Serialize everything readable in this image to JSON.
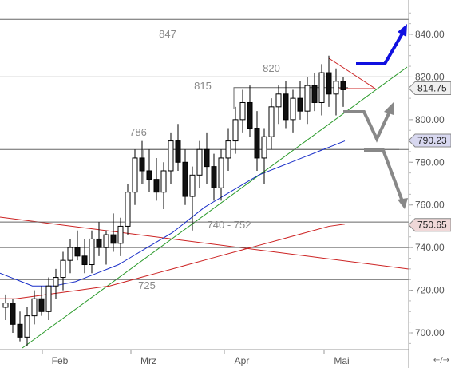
{
  "chart_data": {
    "type": "candlestick",
    "y_ticks": [
      700,
      720,
      740,
      760,
      780,
      800,
      820,
      840
    ],
    "ylim": [
      692,
      852
    ],
    "x_tick_labels": [
      "Feb",
      "Mrz",
      "Apr",
      "Mai"
    ],
    "horizontal_levels": [
      847,
      820,
      786,
      752,
      740,
      725
    ],
    "level_labels": [
      "847",
      "820",
      "815",
      "786",
      "740 - 752",
      "725"
    ],
    "price_tags": [
      {
        "value": 814.75,
        "label": "814.75",
        "color": "#f0f0f0"
      },
      {
        "value": 790.23,
        "label": "790.23",
        "color": "#d8d8f0"
      },
      {
        "value": 750.65,
        "label": "750.65",
        "color": "#f0d8d8"
      }
    ],
    "series": [
      {
        "name": "",
        "kind": "candles",
        "ohlc": [
          [
            712,
            718,
            706,
            714
          ],
          [
            714,
            716,
            700,
            704
          ],
          [
            704,
            710,
            696,
            698
          ],
          [
            698,
            712,
            694,
            708
          ],
          [
            708,
            720,
            704,
            716
          ],
          [
            716,
            722,
            708,
            710
          ],
          [
            710,
            726,
            706,
            722
          ],
          [
            722,
            730,
            716,
            726
          ],
          [
            726,
            738,
            720,
            734
          ],
          [
            734,
            744,
            728,
            740
          ],
          [
            740,
            748,
            734,
            736
          ],
          [
            736,
            744,
            728,
            732
          ],
          [
            732,
            748,
            728,
            744
          ],
          [
            744,
            752,
            736,
            740
          ],
          [
            740,
            748,
            732,
            746
          ],
          [
            746,
            756,
            738,
            742
          ],
          [
            742,
            754,
            736,
            750
          ],
          [
            750,
            770,
            746,
            766
          ],
          [
            766,
            786,
            760,
            782
          ],
          [
            782,
            790,
            770,
            776
          ],
          [
            776,
            786,
            766,
            772
          ],
          [
            772,
            782,
            762,
            766
          ],
          [
            766,
            780,
            758,
            776
          ],
          [
            776,
            794,
            770,
            790
          ],
          [
            790,
            798,
            776,
            780
          ],
          [
            780,
            786,
            760,
            764
          ],
          [
            764,
            778,
            748,
            774
          ],
          [
            774,
            790,
            768,
            786
          ],
          [
            786,
            794,
            770,
            778
          ],
          [
            778,
            784,
            762,
            768
          ],
          [
            768,
            786,
            762,
            782
          ],
          [
            782,
            796,
            776,
            790
          ],
          [
            790,
            806,
            784,
            800
          ],
          [
            800,
            814,
            794,
            808
          ],
          [
            808,
            816,
            792,
            796
          ],
          [
            796,
            804,
            776,
            782
          ],
          [
            782,
            796,
            770,
            792
          ],
          [
            792,
            810,
            786,
            806
          ],
          [
            806,
            816,
            798,
            812
          ],
          [
            812,
            818,
            796,
            800
          ],
          [
            800,
            814,
            794,
            810
          ],
          [
            810,
            818,
            800,
            804
          ],
          [
            804,
            820,
            798,
            816
          ],
          [
            816,
            822,
            804,
            808
          ],
          [
            808,
            826,
            802,
            822
          ],
          [
            822,
            830,
            806,
            812
          ],
          [
            812,
            824,
            802,
            818
          ],
          [
            818,
            820,
            806,
            814
          ]
        ]
      },
      {
        "name": "",
        "kind": "line",
        "color": "#1a2fc8",
        "values": [
          728,
          726,
          724,
          722,
          722,
          722,
          723,
          724,
          726,
          728,
          730,
          732,
          735,
          738,
          741,
          744,
          747,
          751,
          755,
          759,
          762,
          765,
          768,
          771,
          774,
          776,
          778,
          780,
          782,
          784,
          786,
          788,
          790
        ]
      },
      {
        "name": "",
        "kind": "line",
        "color": "#cc2222",
        "values": [
          716,
          716,
          717,
          718,
          719,
          720,
          721,
          722,
          724,
          726,
          728,
          730,
          732,
          734,
          736,
          738,
          740,
          742,
          744,
          746,
          748,
          750,
          751
        ]
      }
    ]
  },
  "ui": {
    "zoom_control": "←/→"
  }
}
